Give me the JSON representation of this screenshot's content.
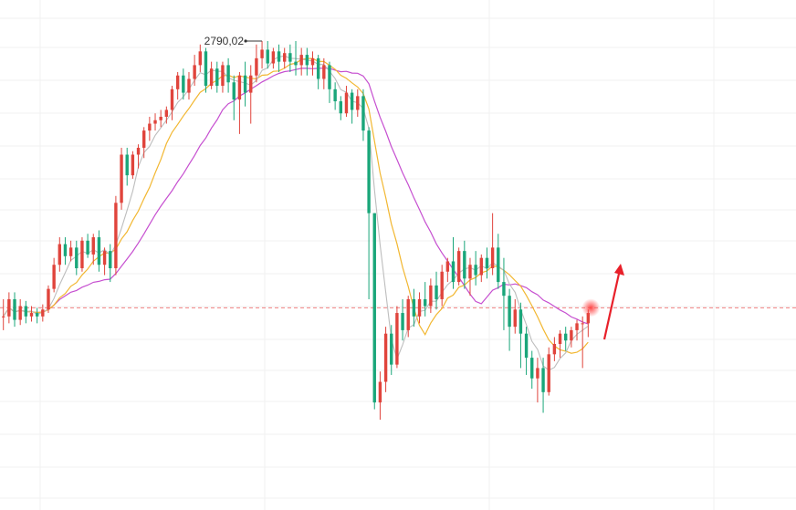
{
  "chart_data": {
    "type": "candlestick",
    "title": "",
    "xlabel": "",
    "ylabel": "",
    "grid": true,
    "ylim": [
      2560,
      2810
    ],
    "colors": {
      "up": "#e0443c",
      "down": "#1aa67a",
      "ma_short": "#bdbdbd",
      "ma_mid": "#f2b731",
      "ma_long": "#c64fd0",
      "current_line": "#f08080",
      "arrow": "#e8202a"
    },
    "annotation": {
      "label": "2790,02",
      "value": 2790.02
    },
    "current_price_level": 2635,
    "candles": [
      [
        2630,
        2630,
        2640,
        2622
      ],
      [
        2630,
        2640,
        2644,
        2626
      ],
      [
        2640,
        2628,
        2644,
        2624
      ],
      [
        2628,
        2636,
        2640,
        2625
      ],
      [
        2636,
        2630,
        2639,
        2626
      ],
      [
        2630,
        2632,
        2636,
        2627
      ],
      [
        2632,
        2630,
        2635,
        2626
      ],
      [
        2630,
        2634,
        2637,
        2627
      ],
      [
        2634,
        2646,
        2648,
        2632
      ],
      [
        2646,
        2660,
        2664,
        2644
      ],
      [
        2660,
        2672,
        2676,
        2656
      ],
      [
        2672,
        2665,
        2676,
        2660
      ],
      [
        2665,
        2670,
        2674,
        2662
      ],
      [
        2670,
        2658,
        2674,
        2654
      ],
      [
        2658,
        2674,
        2676,
        2656
      ],
      [
        2674,
        2666,
        2678,
        2664
      ],
      [
        2666,
        2676,
        2678,
        2660
      ],
      [
        2676,
        2660,
        2680,
        2656
      ],
      [
        2660,
        2668,
        2670,
        2654
      ],
      [
        2668,
        2658,
        2672,
        2650
      ],
      [
        2658,
        2696,
        2700,
        2654
      ],
      [
        2696,
        2724,
        2728,
        2692
      ],
      [
        2724,
        2712,
        2728,
        2706
      ],
      [
        2712,
        2724,
        2726,
        2710
      ],
      [
        2724,
        2728,
        2730,
        2716
      ],
      [
        2728,
        2738,
        2740,
        2722
      ],
      [
        2738,
        2742,
        2746,
        2732
      ],
      [
        2742,
        2744,
        2748,
        2738
      ],
      [
        2744,
        2746,
        2750,
        2740
      ],
      [
        2746,
        2750,
        2752,
        2742
      ],
      [
        2750,
        2762,
        2764,
        2744
      ],
      [
        2762,
        2770,
        2772,
        2756
      ],
      [
        2770,
        2760,
        2774,
        2756
      ],
      [
        2760,
        2768,
        2772,
        2756
      ],
      [
        2768,
        2776,
        2782,
        2764
      ],
      [
        2776,
        2784,
        2788,
        2772
      ],
      [
        2784,
        2764,
        2786,
        2760
      ],
      [
        2764,
        2774,
        2778,
        2762
      ],
      [
        2774,
        2764,
        2778,
        2760
      ],
      [
        2764,
        2776,
        2778,
        2760
      ],
      [
        2776,
        2766,
        2780,
        2760
      ],
      [
        2766,
        2756,
        2770,
        2744
      ],
      [
        2756,
        2770,
        2772,
        2736
      ],
      [
        2770,
        2760,
        2778,
        2752
      ],
      [
        2760,
        2770,
        2776,
        2742
      ],
      [
        2770,
        2780,
        2788,
        2766
      ],
      [
        2780,
        2785,
        2790,
        2774
      ],
      [
        2785,
        2777,
        2790,
        2774
      ],
      [
        2777,
        2784,
        2786,
        2774
      ],
      [
        2784,
        2778,
        2788,
        2772
      ],
      [
        2778,
        2783,
        2786,
        2774
      ],
      [
        2783,
        2778,
        2788,
        2772
      ],
      [
        2778,
        2776,
        2790,
        2770
      ],
      [
        2776,
        2782,
        2786,
        2770
      ],
      [
        2782,
        2776,
        2786,
        2770
      ],
      [
        2776,
        2780,
        2784,
        2770
      ],
      [
        2780,
        2768,
        2782,
        2762
      ],
      [
        2768,
        2776,
        2780,
        2762
      ],
      [
        2776,
        2762,
        2778,
        2754
      ],
      [
        2762,
        2755,
        2766,
        2750
      ],
      [
        2755,
        2748,
        2758,
        2744
      ],
      [
        2748,
        2760,
        2764,
        2746
      ],
      [
        2760,
        2750,
        2762,
        2742
      ],
      [
        2750,
        2758,
        2762,
        2746
      ],
      [
        2758,
        2738,
        2762,
        2732
      ],
      [
        2738,
        2690,
        2740,
        2640
      ],
      [
        2690,
        2580,
        2690,
        2576
      ],
      [
        2580,
        2592,
        2598,
        2570
      ],
      [
        2592,
        2620,
        2624,
        2586
      ],
      [
        2620,
        2602,
        2625,
        2596
      ],
      [
        2602,
        2632,
        2636,
        2600
      ],
      [
        2632,
        2622,
        2640,
        2616
      ],
      [
        2622,
        2640,
        2642,
        2618
      ],
      [
        2640,
        2630,
        2646,
        2624
      ],
      [
        2630,
        2640,
        2644,
        2626
      ],
      [
        2640,
        2636,
        2650,
        2630
      ],
      [
        2636,
        2648,
        2652,
        2632
      ],
      [
        2648,
        2640,
        2656,
        2634
      ],
      [
        2640,
        2656,
        2660,
        2636
      ],
      [
        2656,
        2662,
        2664,
        2650
      ],
      [
        2662,
        2650,
        2676,
        2646
      ],
      [
        2650,
        2668,
        2670,
        2648
      ],
      [
        2668,
        2652,
        2674,
        2646
      ],
      [
        2652,
        2660,
        2664,
        2642
      ],
      [
        2660,
        2654,
        2668,
        2648
      ],
      [
        2654,
        2664,
        2666,
        2650
      ],
      [
        2664,
        2658,
        2670,
        2652
      ],
      [
        2658,
        2670,
        2690,
        2654
      ],
      [
        2670,
        2650,
        2678,
        2646
      ],
      [
        2650,
        2642,
        2664,
        2622
      ],
      [
        2642,
        2624,
        2646,
        2610
      ],
      [
        2624,
        2634,
        2640,
        2620
      ],
      [
        2634,
        2620,
        2638,
        2600
      ],
      [
        2620,
        2606,
        2624,
        2596
      ],
      [
        2606,
        2594,
        2610,
        2588
      ],
      [
        2594,
        2600,
        2606,
        2580
      ],
      [
        2600,
        2586,
        2606,
        2574
      ],
      [
        2586,
        2608,
        2612,
        2584
      ],
      [
        2608,
        2614,
        2618,
        2604
      ],
      [
        2614,
        2620,
        2622,
        2606
      ],
      [
        2620,
        2616,
        2624,
        2610
      ],
      [
        2616,
        2622,
        2624,
        2612
      ],
      [
        2622,
        2626,
        2628,
        2616
      ],
      [
        2626,
        2626,
        2630,
        2600
      ],
      [
        2626,
        2632,
        2634,
        2618
      ]
    ]
  }
}
